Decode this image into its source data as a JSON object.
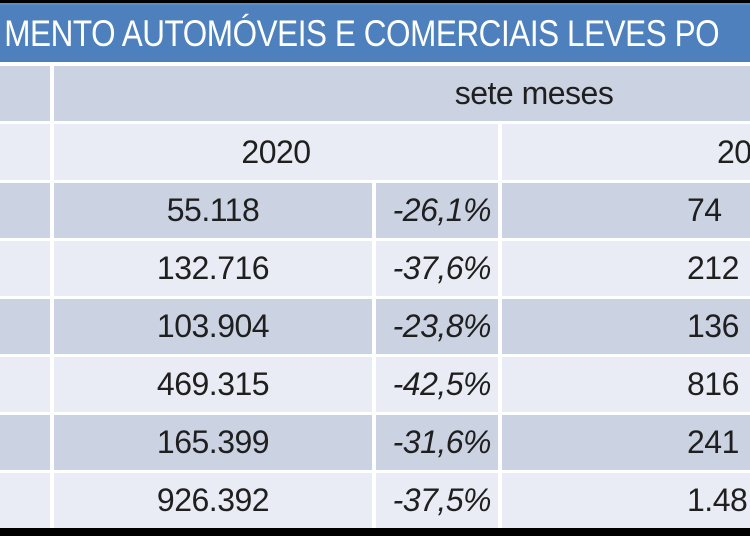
{
  "title": {
    "visible_text": "MENTO AUTOMÓVEIS E COMERCIAIS LEVES PO"
  },
  "table": {
    "period_header": "sete meses",
    "year_left": "2020",
    "year_right_partial": "20",
    "rows": [
      {
        "value_2020": "55.118",
        "pct": "-26,1%",
        "value_right_partial": "74"
      },
      {
        "value_2020": "132.716",
        "pct": "-37,6%",
        "value_right_partial": "212"
      },
      {
        "value_2020": "103.904",
        "pct": "-23,8%",
        "value_right_partial": "136"
      },
      {
        "value_2020": "469.315",
        "pct": "-42,5%",
        "value_right_partial": "816"
      },
      {
        "value_2020": "165.399",
        "pct": "-31,6%",
        "value_right_partial": "241"
      },
      {
        "value_2020": "926.392",
        "pct": "-37,5%",
        "value_right_partial": "1.48"
      }
    ],
    "colors": {
      "title_bg": "#4d80bc",
      "title_text": "#ffffff",
      "row_dark": "#cbd2e2",
      "row_light": "#e9ecf4",
      "frame_border": "#000000",
      "cell_text": "#1f1f1f"
    }
  }
}
